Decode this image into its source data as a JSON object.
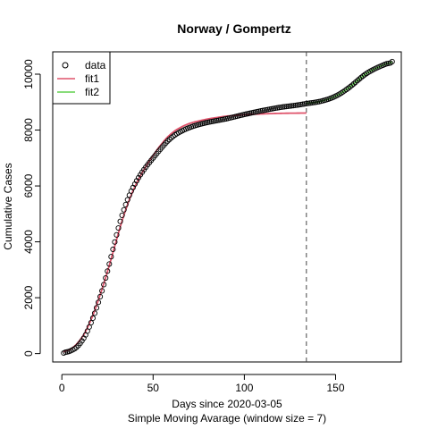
{
  "chart_data": {
    "type": "scatter",
    "title": "Norway / Gompertz",
    "xlabel": "Days since 2020-03-05",
    "sublabel": "Simple Moving Avarage (window size = 7)",
    "ylabel": "Cumulative Cases",
    "xlim": [
      -5,
      186
    ],
    "ylim": [
      -300,
      10800
    ],
    "xticks": [
      0,
      50,
      100,
      150
    ],
    "yticks": [
      0,
      2000,
      4000,
      6000,
      8000,
      10000
    ],
    "cutoff_x": 134,
    "legend": {
      "position": "top-left",
      "entries": [
        {
          "label": "data",
          "kind": "point",
          "color": "#000000"
        },
        {
          "label": "fit1",
          "kind": "line",
          "color": "#DF536B"
        },
        {
          "label": "fit2",
          "kind": "line",
          "color": "#61D04F"
        }
      ]
    },
    "series": [
      {
        "name": "data",
        "kind": "points",
        "x_range": [
          1,
          181
        ],
        "x": [
          1,
          5,
          10,
          15,
          20,
          25,
          30,
          35,
          40,
          45,
          50,
          55,
          60,
          65,
          70,
          75,
          80,
          90,
          100,
          110,
          120,
          130,
          134,
          140,
          145,
          150,
          155,
          160,
          165,
          170,
          175,
          181
        ],
        "y": [
          20,
          80,
          300,
          900,
          1800,
          2900,
          4300,
          5400,
          6100,
          6600,
          7000,
          7400,
          7750,
          7950,
          8100,
          8200,
          8280,
          8400,
          8560,
          8700,
          8820,
          8900,
          8950,
          9000,
          9080,
          9200,
          9400,
          9650,
          9950,
          10150,
          10300,
          10450
        ]
      },
      {
        "name": "fit1",
        "kind": "line",
        "color": "#DF536B",
        "x_range": [
          1,
          134
        ],
        "x": [
          1,
          5,
          10,
          15,
          20,
          25,
          30,
          35,
          40,
          45,
          50,
          55,
          60,
          65,
          70,
          80,
          90,
          100,
          110,
          120,
          134
        ],
        "y": [
          60,
          140,
          450,
          1000,
          1900,
          2900,
          4100,
          5200,
          6000,
          6600,
          7100,
          7550,
          7900,
          8100,
          8250,
          8400,
          8500,
          8550,
          8580,
          8600,
          8610
        ]
      },
      {
        "name": "fit2",
        "kind": "line",
        "color": "#61D04F",
        "x_range": [
          134,
          181
        ],
        "x": [
          134,
          140,
          145,
          150,
          155,
          160,
          165,
          170,
          175,
          181
        ],
        "y": [
          8950,
          9000,
          9080,
          9200,
          9400,
          9650,
          9950,
          10150,
          10300,
          10450
        ]
      }
    ]
  }
}
